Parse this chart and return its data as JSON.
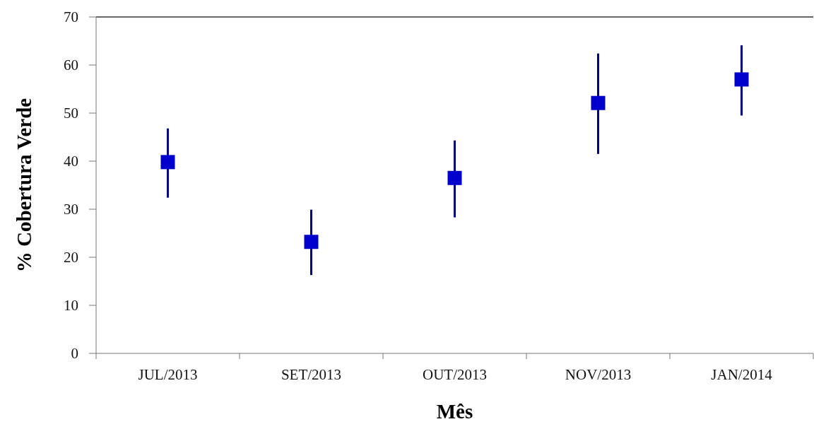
{
  "chart_data": {
    "type": "scatter",
    "xlabel": "Mês",
    "ylabel": "% Cobertura Verde",
    "categories": [
      "JUL/2013",
      "SET/2013",
      "OUT/2013",
      "NOV/2013",
      "JAN/2014"
    ],
    "series": [
      {
        "color": "#0000cc",
        "values": [
          39.8,
          23.2,
          36.5,
          52.1,
          57.0
        ],
        "errors": [
          [
            32.4,
            46.8
          ],
          [
            16.3,
            29.9
          ],
          [
            28.3,
            44.3
          ],
          [
            41.5,
            62.4
          ],
          [
            49.5,
            64.1
          ]
        ]
      }
    ],
    "marker": "square",
    "ylim": [
      0,
      70
    ],
    "yticks": [
      0,
      10,
      20,
      30,
      40,
      50,
      60,
      70
    ],
    "grid": false
  }
}
